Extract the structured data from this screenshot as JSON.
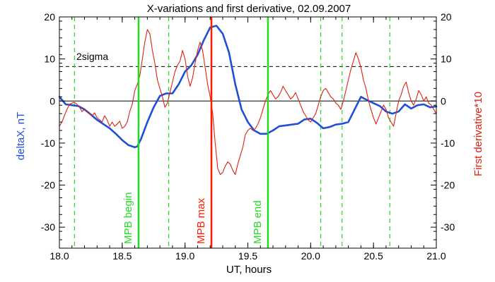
{
  "chart_data": {
    "type": "line",
    "title": "X-variations and first derivative, 02.09.2007",
    "xlabel": "UT, hours",
    "ylabel_left": "deltaX, nT",
    "ylabel_right": "First derivative*10",
    "xlim": [
      18.0,
      21.0
    ],
    "ylim": [
      -35,
      20
    ],
    "x_ticks": [
      18.0,
      18.5,
      19.0,
      19.5,
      20.0,
      20.5,
      21.0
    ],
    "x_tick_labels": [
      "18.0",
      "18.5",
      "19.0",
      "19.5",
      "20.0",
      "20.5",
      "21.0"
    ],
    "y_ticks": [
      -30,
      -20,
      -10,
      0,
      10,
      20
    ],
    "y_tick_labels": [
      "-30",
      "-20",
      "-10",
      "0",
      "10",
      "20"
    ],
    "colors": {
      "deltaX": "#1f4fd8",
      "derivative": "#e02010",
      "mpb_begin_end": "#22dd22",
      "mpb_max": "#ff1a00",
      "dashed_green": "#22dd22",
      "threshold": "#000000"
    },
    "threshold": {
      "label": "2sigma",
      "value": 8.2
    },
    "zero_line": 0,
    "series": [
      {
        "key": "deltaX",
        "color": "#1f4fd8",
        "x": [
          18.0,
          18.05,
          18.1,
          18.15,
          18.2,
          18.25,
          18.3,
          18.35,
          18.4,
          18.45,
          18.5,
          18.55,
          18.6,
          18.62,
          18.65,
          18.7,
          18.75,
          18.8,
          18.85,
          18.9,
          18.95,
          19.0,
          19.05,
          19.1,
          19.15,
          19.2,
          19.25,
          19.3,
          19.35,
          19.4,
          19.45,
          19.5,
          19.55,
          19.6,
          19.65,
          19.7,
          19.75,
          19.8,
          19.85,
          19.9,
          19.95,
          20.0,
          20.05,
          20.1,
          20.15,
          20.2,
          20.25,
          20.3,
          20.35,
          20.4,
          20.45,
          20.5,
          20.55,
          20.6,
          20.65,
          20.7,
          20.75,
          20.8,
          20.85,
          20.9,
          20.95,
          21.0
        ],
        "y": [
          1.0,
          -0.8,
          -1.0,
          -1.2,
          -2.0,
          -3.2,
          -4.5,
          -5.5,
          -6.5,
          -7.8,
          -9.3,
          -10.5,
          -11.0,
          -10.8,
          -9.0,
          -5.0,
          -1.5,
          1.2,
          1.8,
          1.8,
          4.0,
          7.0,
          8.5,
          11.0,
          14.5,
          17.5,
          17.9,
          16.0,
          11.5,
          4.0,
          -2.0,
          -5.0,
          -7.0,
          -7.8,
          -7.8,
          -7.0,
          -6.0,
          -5.8,
          -5.6,
          -5.4,
          -4.4,
          -4.2,
          -5.2,
          -6.5,
          -6.2,
          -5.6,
          -5.4,
          -5.0,
          -2.0,
          1.0,
          0.2,
          -0.5,
          -1.2,
          -2.5,
          -3.0,
          -2.5,
          -0.8,
          -1.8,
          -1.0,
          -0.8,
          -1.5,
          -1.3
        ]
      },
      {
        "key": "derivative",
        "color": "#e02010",
        "x": [
          18.0,
          18.02,
          18.04,
          18.06,
          18.08,
          18.1,
          18.12,
          18.14,
          18.16,
          18.18,
          18.2,
          18.22,
          18.24,
          18.26,
          18.28,
          18.3,
          18.32,
          18.34,
          18.36,
          18.38,
          18.4,
          18.42,
          18.44,
          18.46,
          18.48,
          18.5,
          18.52,
          18.54,
          18.56,
          18.58,
          18.6,
          18.62,
          18.64,
          18.66,
          18.68,
          18.7,
          18.72,
          18.74,
          18.76,
          18.78,
          18.8,
          18.82,
          18.84,
          18.86,
          18.88,
          18.9,
          18.92,
          18.94,
          18.96,
          18.98,
          19.0,
          19.02,
          19.04,
          19.06,
          19.08,
          19.1,
          19.12,
          19.14,
          19.16,
          19.18,
          19.2,
          19.22,
          19.24,
          19.26,
          19.28,
          19.3,
          19.32,
          19.34,
          19.36,
          19.38,
          19.4,
          19.42,
          19.44,
          19.46,
          19.48,
          19.5,
          19.52,
          19.54,
          19.56,
          19.58,
          19.6,
          19.62,
          19.64,
          19.66,
          19.68,
          19.7,
          19.72,
          19.74,
          19.76,
          19.78,
          19.8,
          19.82,
          19.84,
          19.86,
          19.88,
          19.9,
          19.92,
          19.94,
          19.96,
          19.98,
          20.0,
          20.02,
          20.04,
          20.06,
          20.08,
          20.1,
          20.12,
          20.14,
          20.16,
          20.18,
          20.2,
          20.22,
          20.24,
          20.26,
          20.28,
          20.3,
          20.32,
          20.34,
          20.36,
          20.38,
          20.4,
          20.42,
          20.44,
          20.46,
          20.48,
          20.5,
          20.52,
          20.54,
          20.56,
          20.58,
          20.6,
          20.62,
          20.64,
          20.66,
          20.68,
          20.7,
          20.72,
          20.74,
          20.76,
          20.78,
          20.8,
          20.82,
          20.84,
          20.86,
          20.88,
          20.9,
          20.92,
          20.94,
          20.96,
          20.98,
          21.0
        ],
        "y": [
          -6.0,
          -5.0,
          -3.5,
          -2.0,
          -0.8,
          -0.5,
          -0.3,
          -0.8,
          -1.5,
          -2.5,
          -2.0,
          -2.5,
          -3.0,
          -3.5,
          -2.8,
          -4.0,
          -4.5,
          -5.0,
          -3.5,
          -4.5,
          -6.0,
          -5.0,
          -6.0,
          -5.5,
          -4.8,
          -6.5,
          -6.0,
          -5.0,
          -2.5,
          -0.8,
          2.5,
          4.0,
          6.0,
          10.0,
          14.0,
          17.0,
          16.0,
          12.0,
          9.0,
          5.0,
          3.0,
          1.0,
          -1.5,
          -0.5,
          2.0,
          4.5,
          7.0,
          8.5,
          9.5,
          12.0,
          10.0,
          6.0,
          3.5,
          5.5,
          9.0,
          12.0,
          14.0,
          12.0,
          8.0,
          4.0,
          1.0,
          -3.0,
          -10.0,
          -16.0,
          -17.5,
          -17.0,
          -15.5,
          -14.5,
          -15.0,
          -16.5,
          -17.5,
          -15.0,
          -13.0,
          -11.0,
          -8.0,
          -7.0,
          -6.5,
          -7.0,
          -6.5,
          -5.5,
          -4.0,
          -2.0,
          0.0,
          1.5,
          2.5,
          1.5,
          0.5,
          1.0,
          2.0,
          3.5,
          2.5,
          1.5,
          0.5,
          1.0,
          2.0,
          0.5,
          -1.0,
          -2.5,
          -3.5,
          -4.5,
          -5.0,
          -4.0,
          -3.0,
          -1.0,
          1.0,
          2.5,
          3.0,
          2.0,
          1.0,
          0.5,
          -0.5,
          -1.0,
          -2.0,
          0.0,
          2.5,
          5.0,
          7.5,
          9.5,
          11.5,
          10.0,
          8.0,
          5.0,
          3.0,
          0.0,
          -2.0,
          -4.0,
          -5.5,
          -4.0,
          -2.5,
          -1.0,
          -2.0,
          -4.0,
          -5.0,
          -6.0,
          -3.0,
          0.0,
          1.5,
          3.5,
          4.5,
          2.0,
          0.0,
          -1.0,
          0.5,
          2.5,
          1.5,
          0.0,
          1.0,
          -0.5,
          -1.0,
          -2.0,
          -3.0
        ]
      }
    ],
    "vertical_markers": [
      {
        "key": "mpb_begin",
        "x": 18.63,
        "label": "MPB begin",
        "color": "#22dd22",
        "style": "solid"
      },
      {
        "key": "mpb_max",
        "x": 19.21,
        "label": "MPB max",
        "color": "#ff1a00",
        "style": "solid"
      },
      {
        "key": "mpb_end",
        "x": 19.66,
        "label": "MPB end",
        "color": "#22dd22",
        "style": "solid"
      }
    ],
    "dashed_verticals": [
      18.12,
      18.87,
      20.08,
      20.25,
      20.63
    ]
  }
}
